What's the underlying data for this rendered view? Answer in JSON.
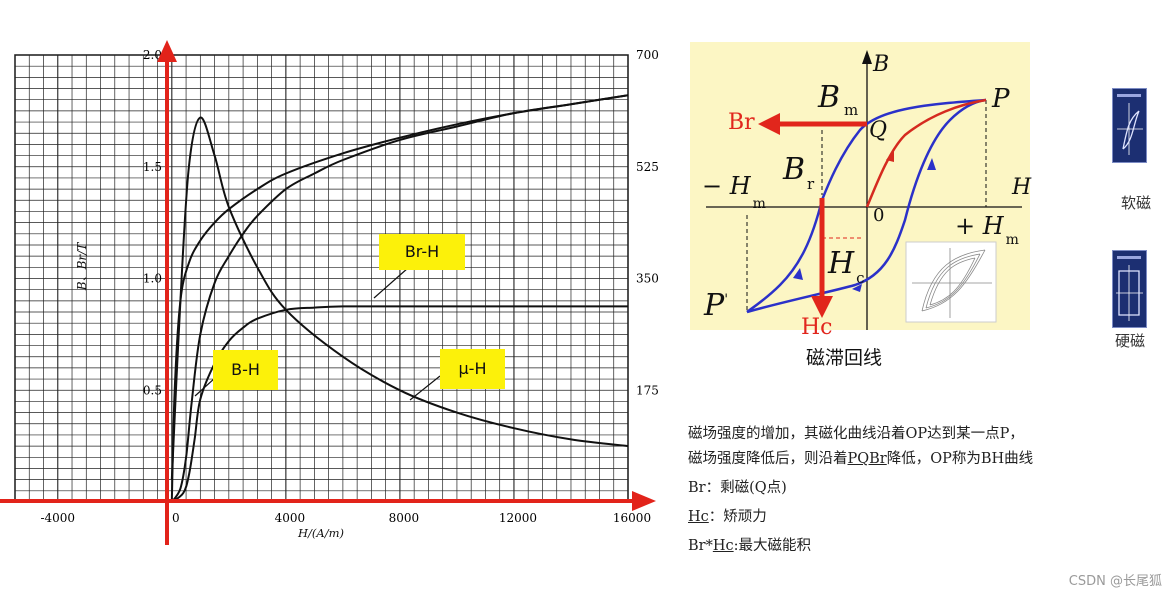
{
  "chart_data": [
    {
      "type": "line",
      "xlabel": "H/(A/m)",
      "ylabel": "B、Br/T",
      "xlim": [
        -5500,
        16000
      ],
      "ylim": [
        0,
        2.0
      ],
      "x_ticks": [
        "-4000",
        "0",
        "4000",
        "8000",
        "12000",
        "16000"
      ],
      "y_ticks_left": [
        "0.5",
        "1.0",
        "1.5",
        "2.0"
      ],
      "y_ticks_right": [
        "175",
        "350",
        "525",
        "700"
      ],
      "grid": true,
      "series": [
        {
          "name": "B-H",
          "x": [
            0,
            100,
            300,
            600,
            1000,
            1500,
            2000,
            3000,
            4000,
            6000,
            8000,
            10000,
            12000,
            14000,
            16000
          ],
          "y": [
            0,
            0.5,
            0.9,
            1.07,
            1.17,
            1.25,
            1.31,
            1.4,
            1.47,
            1.56,
            1.63,
            1.69,
            1.74,
            1.78,
            1.82
          ]
        },
        {
          "name": "",
          "x": [
            0,
            300,
            500,
            700,
            1000,
            1500,
            2000,
            2500,
            3000,
            4000,
            5000,
            6000,
            8000,
            10000,
            12000,
            14000,
            16000
          ],
          "y": [
            0,
            0.06,
            0.2,
            0.45,
            0.75,
            0.98,
            1.1,
            1.2,
            1.28,
            1.4,
            1.47,
            1.53,
            1.62,
            1.68,
            1.74,
            1.78,
            1.82
          ]
        },
        {
          "name": "Br-H",
          "x": [
            0,
            400,
            600,
            800,
            1000,
            1500,
            2000,
            2500,
            3000,
            4000,
            5000,
            6000,
            8000,
            10000,
            12000,
            14000,
            16000
          ],
          "y": [
            0,
            0.04,
            0.12,
            0.28,
            0.46,
            0.62,
            0.72,
            0.78,
            0.82,
            0.86,
            0.87,
            0.875,
            0.875,
            0.875,
            0.875,
            0.875,
            0.875
          ]
        },
        {
          "name": "μ-H",
          "x": [
            0,
            300,
            600,
            1000,
            1500,
            2000,
            3000,
            4000,
            6000,
            8000,
            10000,
            12000,
            14000,
            16000
          ],
          "y": [
            0.1,
            0.9,
            1.5,
            1.72,
            1.55,
            1.32,
            1.05,
            0.86,
            0.65,
            0.5,
            0.4,
            0.33,
            0.28,
            0.25
          ]
        }
      ],
      "labels": [
        "Br-H",
        "B-H",
        "μ-H"
      ]
    },
    {
      "type": "line",
      "caption": "磁滞回线",
      "axes": {
        "x": "H",
        "y": "B",
        "origin": "0"
      },
      "points": {
        "P": "P",
        "P_prime": "P",
        "P_prime_mark": "'",
        "Q": "Q"
      },
      "labels": {
        "Bm": "B",
        "Bm_sub": "m",
        "Br": "B",
        "Br_sub": "r",
        "neg_hm": "− H",
        "neg_hm_sub": "m",
        "pos_hm": "+ H",
        "pos_hm_sub": "m",
        "hc": "H",
        "hc_sub": "c"
      },
      "arrows": {
        "br": "Br",
        "hc": "Hc"
      },
      "colors": {
        "loop": "#2b31c9",
        "initial": "#d52a1f",
        "arrow": "#e1261c",
        "background": "#fcf6c4"
      }
    }
  ],
  "notes": {
    "line1": "磁场强度的增加，其磁化曲线沿着OP达到某一点P，",
    "line2_a": "磁场强度降低后，则沿着",
    "line2_u": "PQBr",
    "line2_b": "降低，OP称为BH曲线",
    "line3": "Br：剩磁(Q点)",
    "line4_u": "Hc",
    "line4_b": "：矫顽力",
    "line5_a": "Br*",
    "line5_u": "Hc",
    "line5_b": ":最大磁能积"
  },
  "thumbs": [
    {
      "caption": "软磁",
      "icon": "soft-magnetic-loop-icon"
    },
    {
      "caption": "硬磁",
      "icon": "hard-magnetic-loop-icon"
    }
  ],
  "watermark": "CSDN @长尾狐"
}
